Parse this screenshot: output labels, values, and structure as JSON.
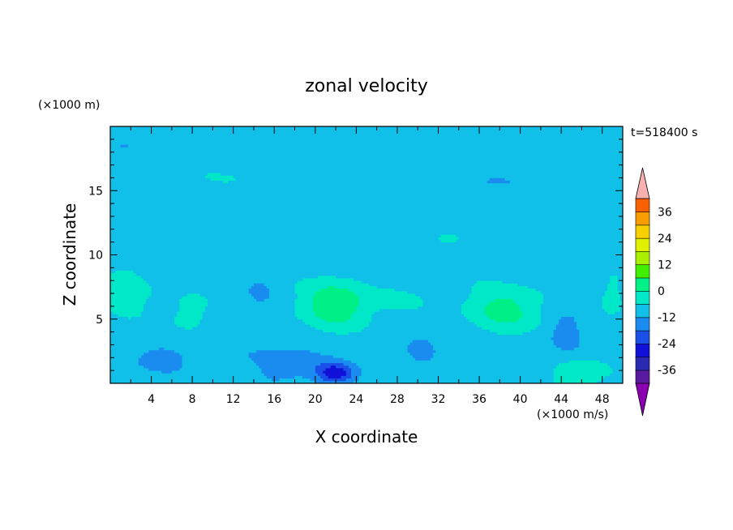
{
  "chart_data": {
    "type": "heatmap",
    "title": "zonal velocity",
    "xlabel": "X coordinate",
    "ylabel": "Z coordinate",
    "x_unit": "(×1000 m/s)",
    "y_unit": "(×1000 m)",
    "time_label": "t=518400 s",
    "xlim": [
      0,
      50
    ],
    "ylim": [
      0,
      20
    ],
    "x_ticks": [
      4,
      8,
      12,
      16,
      20,
      24,
      28,
      32,
      36,
      40,
      44,
      48
    ],
    "y_ticks": [
      5,
      10,
      15
    ],
    "colorbar": {
      "ticks": [
        36,
        24,
        12,
        0,
        -12,
        -24,
        -36
      ],
      "levels": [
        -42,
        -36,
        -30,
        -24,
        -18,
        -12,
        -6,
        0,
        6,
        12,
        18,
        24,
        30,
        36,
        42
      ],
      "colors": [
        "#7a00a8",
        "#5a1aa0",
        "#2a2ab0",
        "#1010d8",
        "#1a50e8",
        "#1a8cf0",
        "#10c0e8",
        "#00e8c8",
        "#00f088",
        "#40f000",
        "#a8f000",
        "#e0f000",
        "#f8d000",
        "#f89c00",
        "#f86000",
        "#f82000",
        "#f8b0b0"
      ],
      "over_color": "#f8b0b0",
      "under_color": "#8a00b0"
    },
    "features": [
      {
        "x": 22,
        "z": 6.2,
        "value": 14,
        "sx": 3.2,
        "sz": 1.8
      },
      {
        "x": 38.5,
        "z": 5.8,
        "value": 11,
        "sx": 3.5,
        "sz": 1.7
      },
      {
        "x": 46,
        "z": 0.8,
        "value": 9,
        "sx": 2.5,
        "sz": 1.0
      },
      {
        "x": 1.5,
        "z": 7.0,
        "value": 6,
        "sx": 2.2,
        "sz": 2.0
      },
      {
        "x": 8,
        "z": 5.7,
        "value": 5,
        "sx": 2.0,
        "sz": 1.5
      },
      {
        "x": 13,
        "z": 1.0,
        "value": 4,
        "sx": 2.0,
        "sz": 1.0
      },
      {
        "x": 49,
        "z": 6.8,
        "value": 5,
        "sx": 1.2,
        "sz": 1.8
      },
      {
        "x": 34,
        "z": 11.5,
        "value": 3,
        "sx": 3.0,
        "sz": 0.7
      },
      {
        "x": 22,
        "z": 0.8,
        "value": -18,
        "sx": 1.8,
        "sz": 0.8
      },
      {
        "x": 17,
        "z": 1.5,
        "value": -8,
        "sx": 4.5,
        "sz": 1.4
      },
      {
        "x": 5.5,
        "z": 2.0,
        "value": -5,
        "sx": 4.0,
        "sz": 1.3
      },
      {
        "x": 44.5,
        "z": 4.0,
        "value": -6,
        "sx": 1.8,
        "sz": 1.7
      },
      {
        "x": 30.5,
        "z": 2.8,
        "value": -5,
        "sx": 1.8,
        "sz": 1.7
      },
      {
        "x": 14.5,
        "z": 7.0,
        "value": -4,
        "sx": 1.5,
        "sz": 1.5
      },
      {
        "x": 36,
        "z": 15.5,
        "value": -4,
        "sx": 4.5,
        "sz": 1.0
      },
      {
        "x": 1.3,
        "z": 18.5,
        "value": -3,
        "sx": 1.5,
        "sz": 0.7
      },
      {
        "x": 33,
        "z": 9.5,
        "value": -3,
        "sx": 4.0,
        "sz": 0.7
      },
      {
        "x": 28,
        "z": 6.5,
        "value": 4,
        "sx": 3.0,
        "sz": 0.9
      },
      {
        "x": 15,
        "z": 12.0,
        "value": 2,
        "sx": 7.0,
        "sz": 1.5
      },
      {
        "x": 38,
        "z": 18.5,
        "value": 2,
        "sx": 9.0,
        "sz": 0.8
      },
      {
        "x": 14,
        "z": 16.0,
        "value": 2,
        "sx": 9.0,
        "sz": 0.8
      }
    ]
  }
}
